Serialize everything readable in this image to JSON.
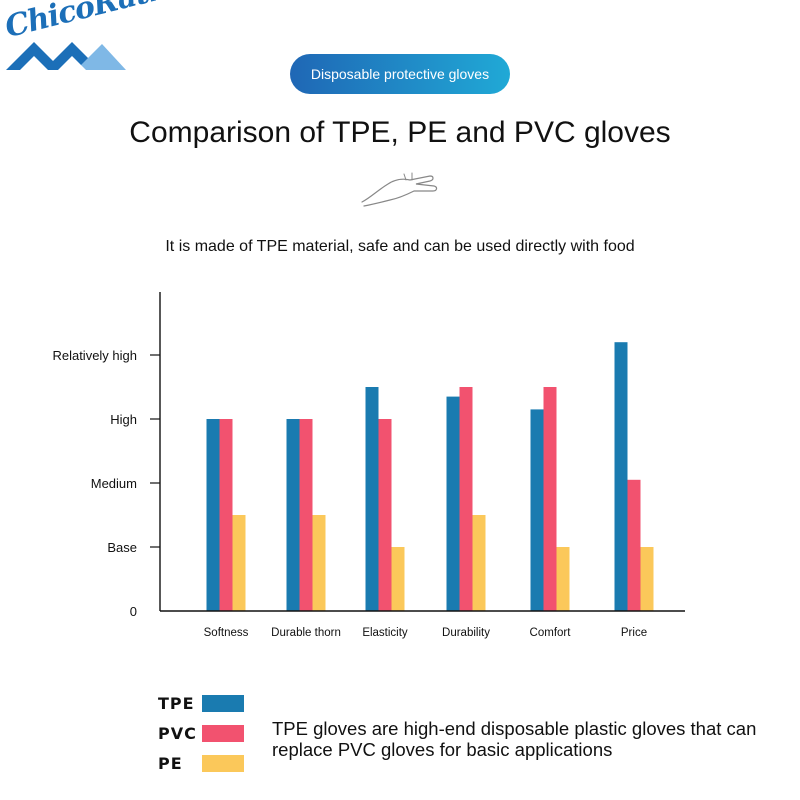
{
  "logo": {
    "text": "ChicoRath"
  },
  "badge": {
    "label": "Disposable protective gloves"
  },
  "heading": "Comparison of TPE, PE and PVC gloves",
  "decor": {
    "icon": "hand-line-icon"
  },
  "chart_data": {
    "type": "bar",
    "subtitle": "It is made of TPE material, safe and can be used directly with food",
    "categories": [
      "Softness",
      "Durable thorn",
      "Elasticity",
      "Durability",
      "Comfort",
      "Price"
    ],
    "yticks": [
      {
        "value": 0,
        "label": "0"
      },
      {
        "value": 1,
        "label": "Base"
      },
      {
        "value": 2,
        "label": "Medium"
      },
      {
        "value": 3,
        "label": "High"
      },
      {
        "value": 4,
        "label": "Relatively high"
      }
    ],
    "ylim": [
      0,
      4.8
    ],
    "series": [
      {
        "name": "TPE",
        "color": "#1a7bb0",
        "values": [
          3.0,
          3.0,
          3.5,
          3.35,
          3.15,
          4.2
        ]
      },
      {
        "name": "PVC",
        "color": "#f2526f",
        "values": [
          3.0,
          3.0,
          3.0,
          3.5,
          3.5,
          2.05
        ]
      },
      {
        "name": "PE",
        "color": "#fbc85a",
        "values": [
          1.5,
          1.5,
          1.0,
          1.5,
          1.0,
          1.0
        ]
      }
    ],
    "legend_position": "bottom-left",
    "grid": false
  },
  "note": "TPE gloves are high-end disposable plastic gloves that can replace PVC gloves for basic applications"
}
